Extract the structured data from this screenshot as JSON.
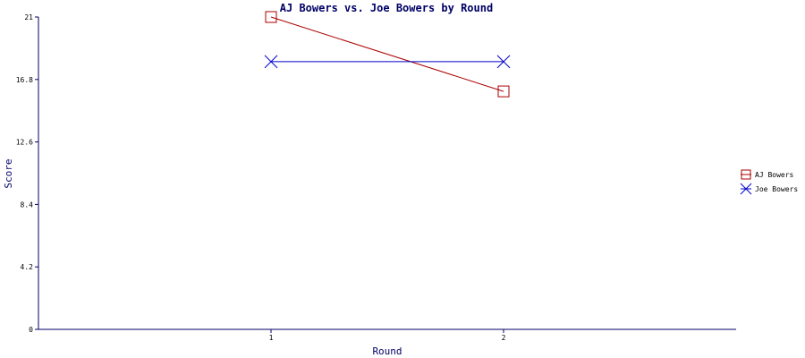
{
  "chart_data": {
    "type": "line",
    "title": "AJ Bowers vs. Joe Bowers by Round",
    "xlabel": "Round",
    "ylabel": "Score",
    "categories": [
      "1",
      "2"
    ],
    "yticks": [
      "0",
      "4.2",
      "8.4",
      "12.6",
      "16.8",
      "21"
    ],
    "ylim": [
      0,
      21
    ],
    "grid": false,
    "legend_position": "right",
    "series": [
      {
        "name": "AJ Bowers",
        "values": [
          21,
          16
        ],
        "color": "#aa0000",
        "marker": "square"
      },
      {
        "name": "Joe Bowers",
        "values": [
          18,
          18
        ],
        "color": "#0000cc",
        "marker": "x"
      }
    ]
  }
}
